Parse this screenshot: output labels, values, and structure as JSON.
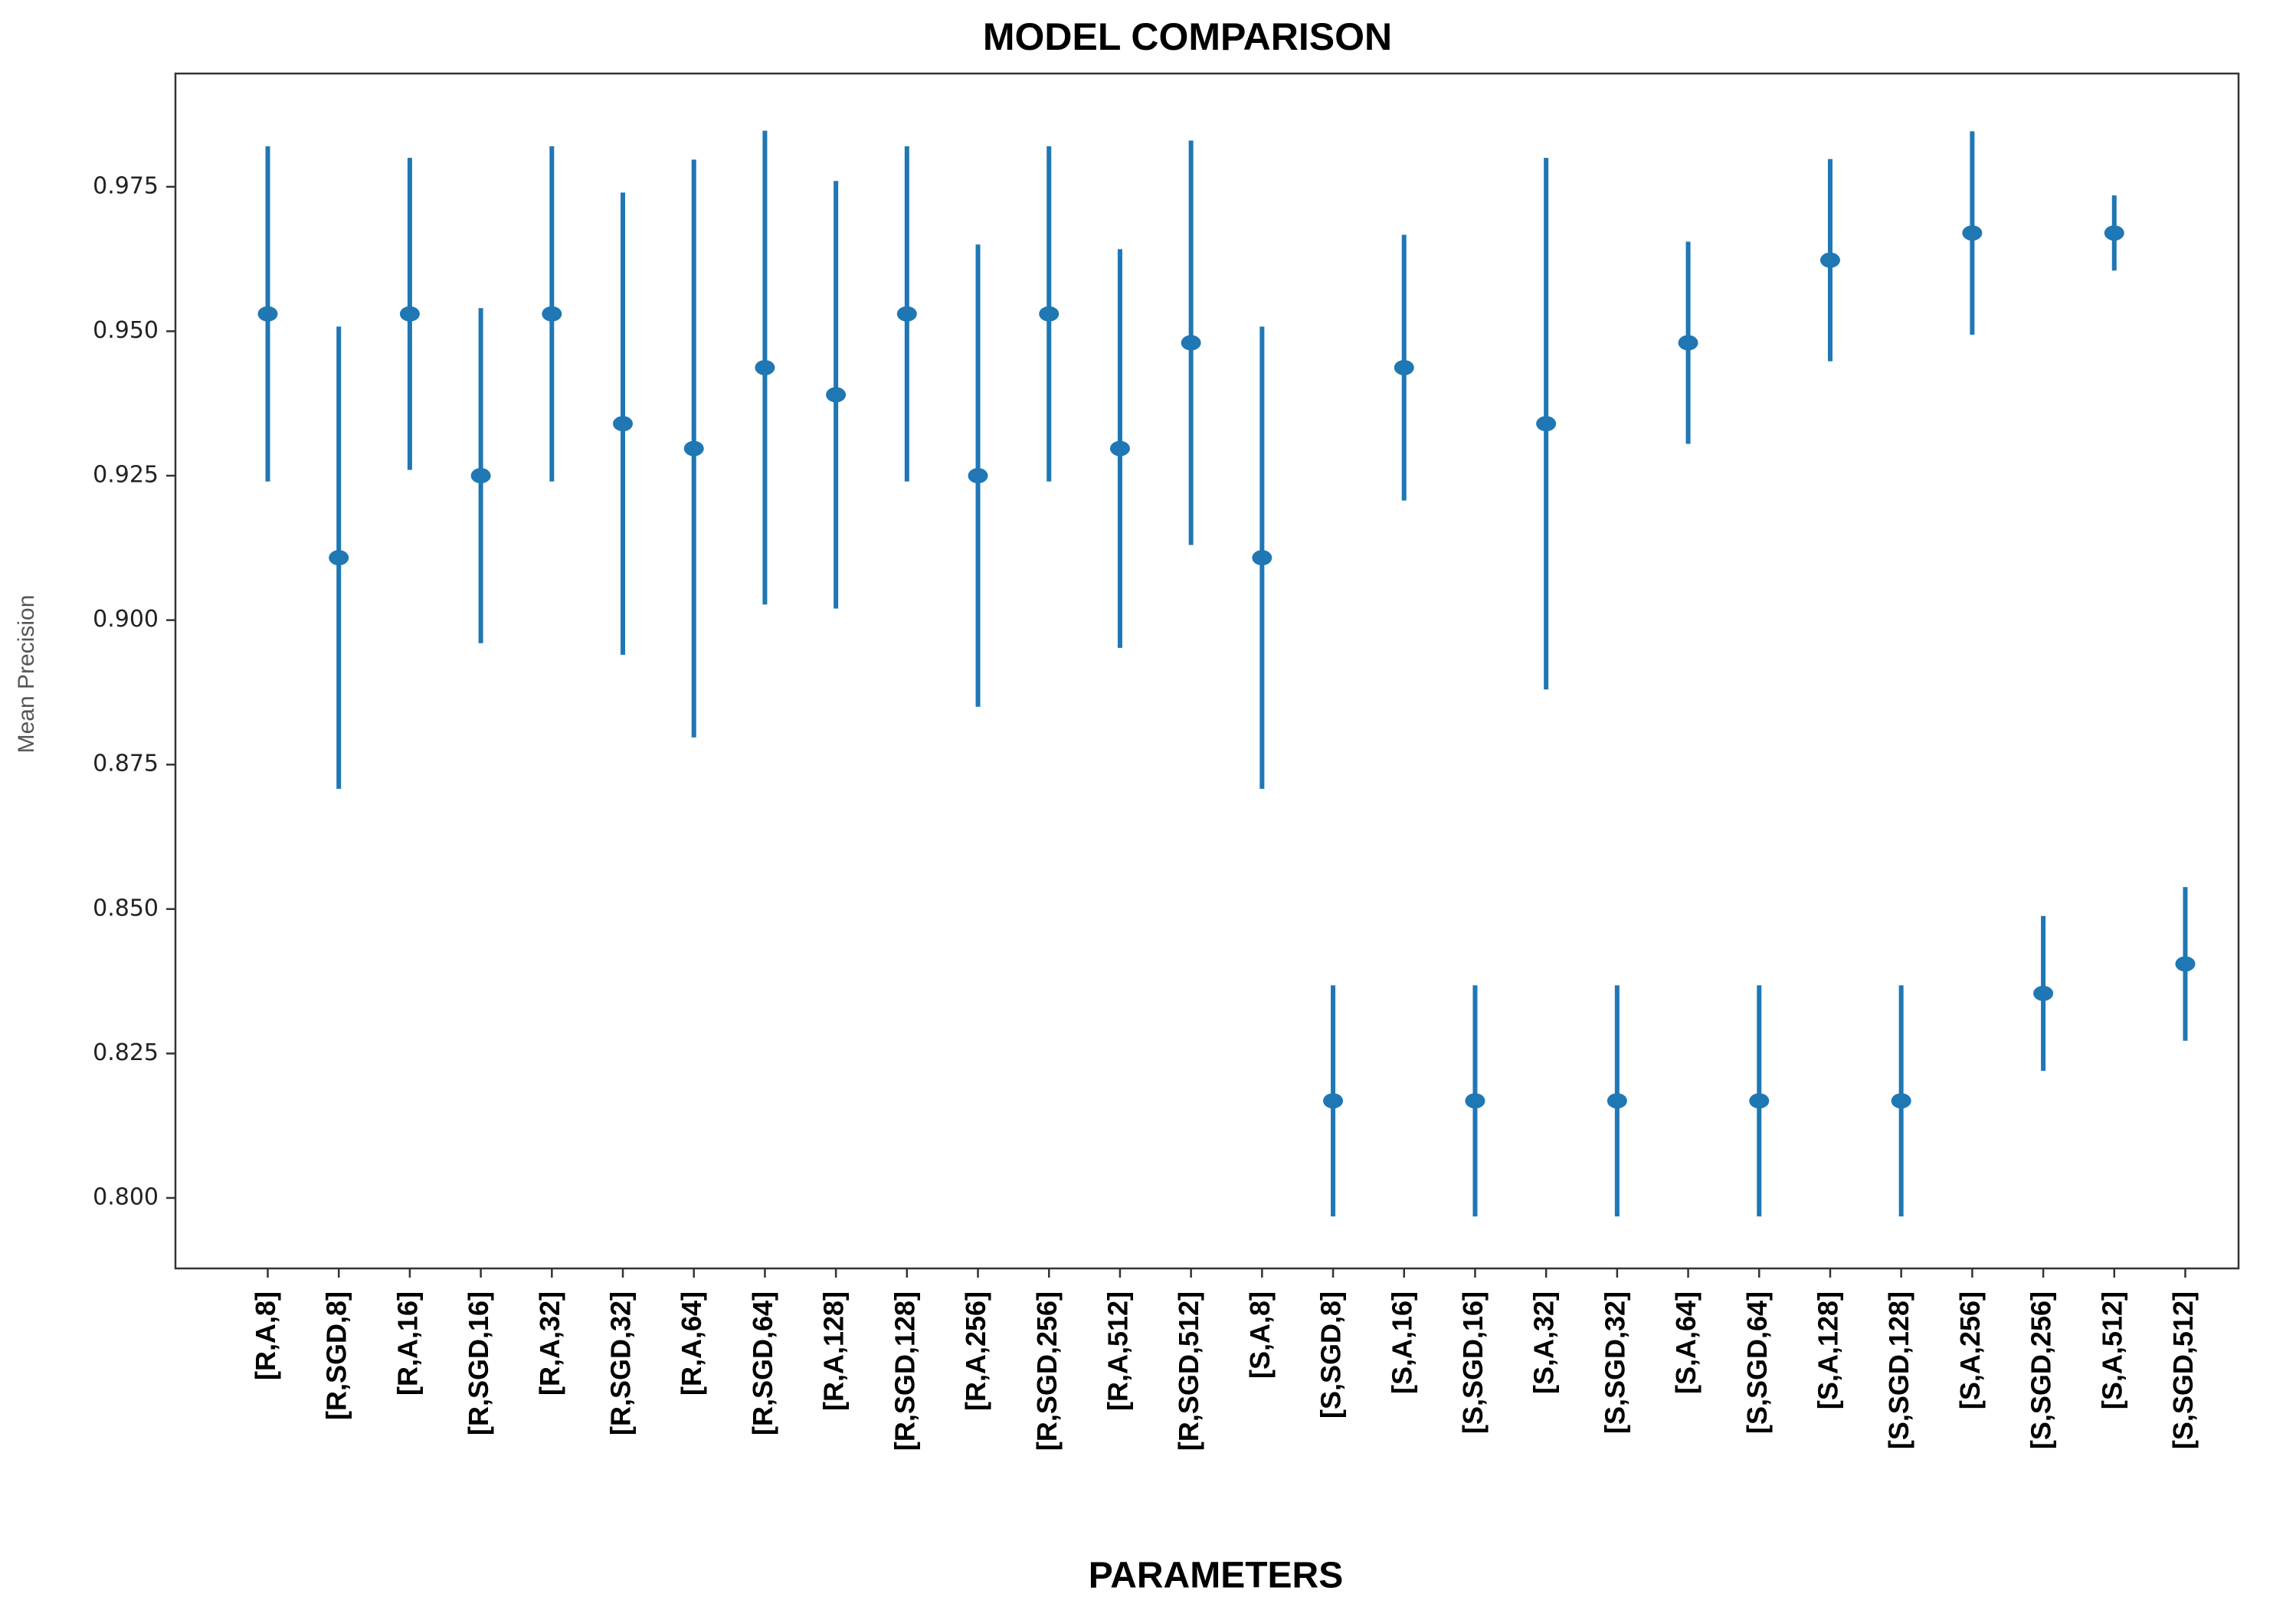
{
  "chart_data": {
    "type": "errorbar",
    "title": "MODEL COMPARISON",
    "x_label": "PARAMETERS",
    "y_label": "Mean Precision",
    "categories": [
      "[R,A,8]",
      "[R,SGD,8]",
      "[R,A,16]",
      "[R,SGD,16]",
      "[R,A,32]",
      "[R,SGD,32]",
      "[R,A,64]",
      "[R,SGD,64]",
      "[R,A,128]",
      "[R,SGD,128]",
      "[R,A,256]",
      "[R,SGD,256]",
      "[R,A,512]",
      "[R,SGD,512]",
      "[S,A,8]",
      "[S,SGD,8]",
      "[S,A,16]",
      "[S,SGD,16]",
      "[S,A,32]",
      "[S,SGD,32]",
      "[S,A,64]",
      "[S,SGD,64]",
      "[S,A,128]",
      "[S,SGD,128]",
      "[S,A,256]",
      "[S,SGD,256]",
      "[S,A,512]",
      "[S,SGD,512]"
    ],
    "series": [
      {
        "color": "#1f77b4",
        "values": [
          0.953,
          0.9108,
          0.953,
          0.925,
          0.953,
          0.934,
          0.9297,
          0.9437,
          0.939,
          0.953,
          0.925,
          0.953,
          0.9297,
          0.948,
          0.9108,
          0.8168,
          0.9437,
          0.8168,
          0.934,
          0.8168,
          0.948,
          0.8168,
          0.9623,
          0.8168,
          0.967,
          0.8354,
          0.967,
          0.8405
        ],
        "errors": [
          0.029,
          0.04,
          0.027,
          0.029,
          0.029,
          0.04,
          0.05,
          0.041,
          0.037,
          0.029,
          0.04,
          0.029,
          0.0345,
          0.035,
          0.04,
          0.02,
          0.023,
          0.02,
          0.046,
          0.02,
          0.0175,
          0.02,
          0.0175,
          0.02,
          0.0176,
          0.0134,
          0.0065,
          0.0133
        ]
      }
    ],
    "ylim": [
      0.7878,
      0.9946
    ],
    "yticks": [
      {
        "value": 0.8,
        "label": "0.800"
      },
      0.825,
      {
        "value": 0.85,
        "label": "0.850"
      },
      0.875,
      {
        "value": 0.9,
        "label": "0.900"
      },
      0.925,
      {
        "value": 0.95,
        "label": "0.950"
      },
      0.975
    ]
  }
}
